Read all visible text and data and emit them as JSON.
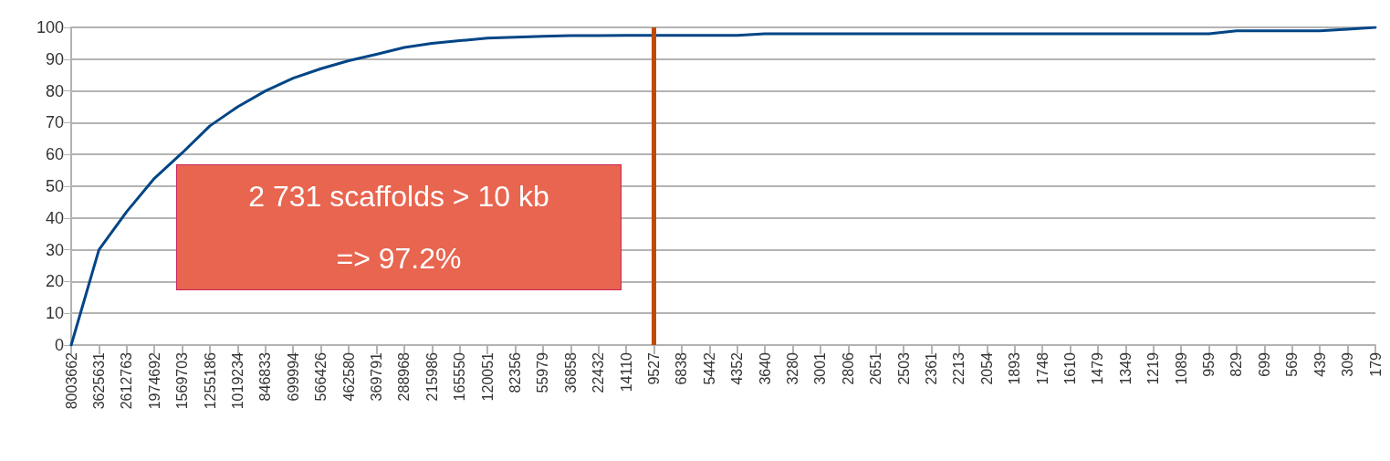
{
  "chart_data": {
    "type": "line",
    "categories": [
      "8003662",
      "3625631",
      "2612763",
      "1974692",
      "1569703",
      "1255186",
      "1019234",
      "846833",
      "699994",
      "566426",
      "462580",
      "369791",
      "288968",
      "215986",
      "165550",
      "120051",
      "82356",
      "55979",
      "36858",
      "22432",
      "14110",
      "9527",
      "6838",
      "5442",
      "4352",
      "3640",
      "3280",
      "3001",
      "2806",
      "2651",
      "2503",
      "2361",
      "2213",
      "2054",
      "1893",
      "1748",
      "1610",
      "1479",
      "1349",
      "1219",
      "1089",
      "959",
      "829",
      "699",
      "569",
      "439",
      "309",
      "179"
    ],
    "series": [
      {
        "color": "#004586",
        "values": [
          0,
          30,
          42,
          52.5,
          60.5,
          69,
          75,
          80,
          84,
          87,
          89.5,
          91.5,
          93.7,
          95,
          95.8,
          96.6,
          96.9,
          97.2,
          97.4,
          97.4,
          97.5,
          97.5,
          97.5,
          97.5,
          97.5,
          98,
          98,
          98,
          98,
          98,
          98,
          98,
          98,
          98,
          98,
          98,
          98,
          98,
          98,
          98,
          98,
          98,
          98.9,
          98.9,
          98.9,
          98.9,
          99.4,
          100
        ]
      }
    ],
    "ylim": [
      0,
      100
    ],
    "yticks": [
      0,
      10,
      20,
      30,
      40,
      50,
      60,
      70,
      80,
      90,
      100
    ],
    "grid": "y",
    "marker": "none",
    "line_style": "solid",
    "ref_lines": [
      {
        "axis": "x",
        "value": "9527",
        "color": "#c04a00"
      }
    ],
    "annotations": [
      "2 731 scaffolds > 10 kb",
      "=> 97.2%"
    ]
  }
}
